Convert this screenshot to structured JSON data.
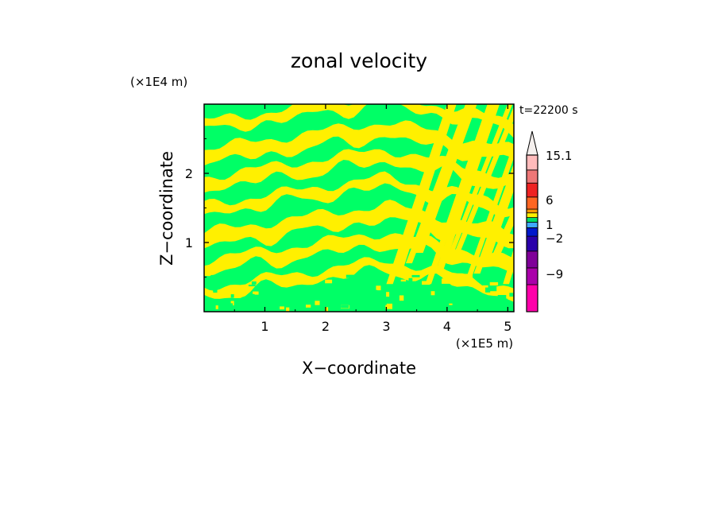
{
  "chart_data": {
    "type": "heatmap",
    "title": "zonal velocity",
    "xlabel": "X−coordinate",
    "ylabel": "Z−coordinate",
    "x_unit": "(×1E5 m)",
    "y_unit": "(×1E4 m)",
    "time_label": "t=22200 s",
    "xlim": [
      0,
      5.1
    ],
    "ylim": [
      0,
      3.0
    ],
    "x_ticks": [
      1,
      2,
      3,
      4,
      5
    ],
    "y_ticks": [
      1,
      2
    ],
    "grid": false,
    "colorbar": {
      "colors": [
        "#ff00aa",
        "#aa00aa",
        "#7f0099",
        "#2a00aa",
        "#0018cc",
        "#3fa8ff",
        "#00dd66",
        "#fff000",
        "#ff9900",
        "#ff6622",
        "#ee2222",
        "#ee7777",
        "#ffbbbb",
        "#f5f0ee"
      ],
      "labels": [
        "15.1",
        "6",
        "1",
        "−2",
        "−9"
      ]
    },
    "field": {
      "dominant_colors": [
        "#fff000",
        "#00ff66"
      ],
      "pattern": "alternating bands of positive (yellow) and near-zero/negative (green) zonal velocity"
    }
  }
}
